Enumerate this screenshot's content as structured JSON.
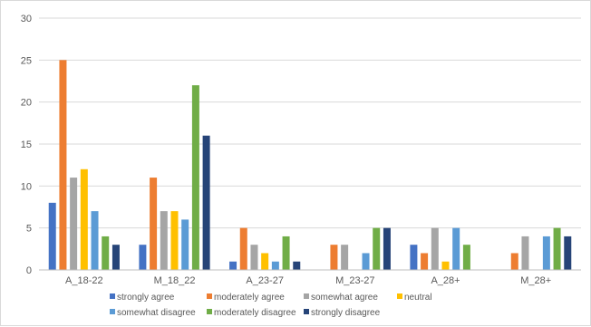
{
  "chart_data": {
    "type": "bar",
    "title": "",
    "xlabel": "",
    "ylabel": "",
    "ylim": [
      0,
      30
    ],
    "yticks": [
      0,
      5,
      10,
      15,
      20,
      25,
      30
    ],
    "grid": "horizontal",
    "legend_position": "bottom",
    "categories": [
      "A_18-22",
      "M_18_22",
      "A_23-27",
      "M_23-27",
      "A_28+",
      "M_28+"
    ],
    "series": [
      {
        "name": "strongly agree",
        "color": "#4472C4",
        "values": [
          8,
          3,
          1,
          0,
          3,
          0
        ]
      },
      {
        "name": "moderately agree",
        "color": "#ED7D31",
        "values": [
          25,
          11,
          5,
          3,
          2,
          2
        ]
      },
      {
        "name": "somewhat agree",
        "color": "#A5A5A5",
        "values": [
          11,
          7,
          3,
          3,
          5,
          4
        ]
      },
      {
        "name": "neutral",
        "color": "#FFC000",
        "values": [
          12,
          7,
          2,
          0,
          1,
          0
        ]
      },
      {
        "name": "somewhat disagree",
        "color": "#5B9BD5",
        "values": [
          7,
          6,
          1,
          2,
          5,
          4
        ]
      },
      {
        "name": "moderately disagree",
        "color": "#70AD47",
        "values": [
          4,
          22,
          4,
          5,
          3,
          5
        ]
      },
      {
        "name": "strongly disagree",
        "color": "#264478",
        "values": [
          3,
          16,
          1,
          5,
          0,
          4
        ]
      }
    ]
  }
}
